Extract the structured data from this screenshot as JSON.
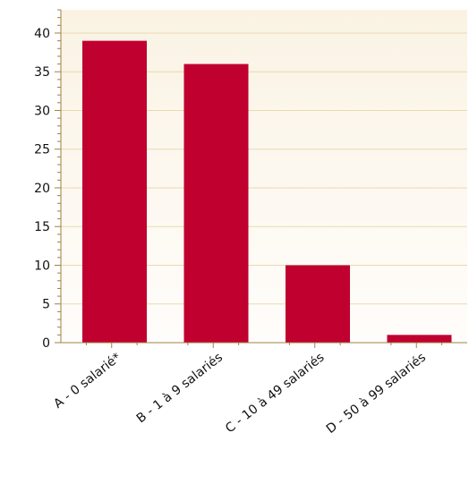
{
  "chart_data": {
    "type": "bar",
    "categories": [
      "A - 0 salarié*",
      "B - 1 à 9 salariés",
      "C - 10 à 49 salariés",
      "D - 50 à 99 salariés"
    ],
    "values": [
      39,
      36,
      10,
      1
    ],
    "ylim": [
      0,
      43
    ],
    "yticks": [
      0,
      5,
      10,
      15,
      20,
      25,
      30,
      35,
      40
    ],
    "grid": true,
    "colors": {
      "bar": "#C0002F",
      "plot_bg_top": "#FAF3E4",
      "plot_bg_bottom": "#FFFDFB",
      "grid": "#E8D9B0",
      "axis": "#A08040"
    }
  }
}
